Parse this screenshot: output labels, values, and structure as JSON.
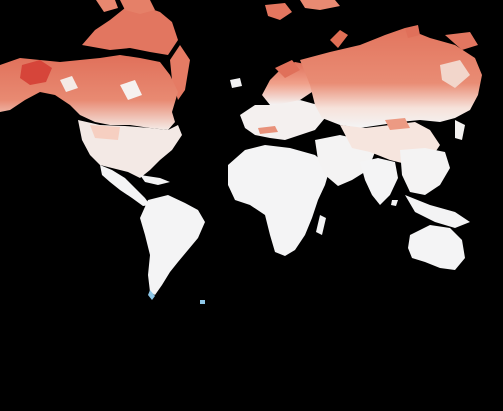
{
  "map": {
    "projection": "mercator",
    "background_color": "#000000",
    "color_scale": {
      "low": "#f5f5f7",
      "mid": "#f4b9a3",
      "high": "#e06f55",
      "max": "#d6453a",
      "negative": "#8ec7e8"
    },
    "regions": [
      {
        "name": "north-america-arctic",
        "level": 0.85
      },
      {
        "name": "canada",
        "level": 0.8
      },
      {
        "name": "usa",
        "level": 0.15
      },
      {
        "name": "mexico-central-america",
        "level": 0.02
      },
      {
        "name": "greenland-fragments",
        "level": 0.8
      },
      {
        "name": "south-america",
        "level": 0.0
      },
      {
        "name": "europe-north",
        "level": 0.75
      },
      {
        "name": "europe-central",
        "level": 0.2
      },
      {
        "name": "africa",
        "level": 0.0
      },
      {
        "name": "middle-east",
        "level": 0.05
      },
      {
        "name": "russia-siberia",
        "level": 0.8
      },
      {
        "name": "central-asia",
        "level": 0.3
      },
      {
        "name": "south-asia",
        "level": 0.02
      },
      {
        "name": "southeast-asia",
        "level": 0.0
      },
      {
        "name": "australia",
        "level": 0.0
      }
    ]
  }
}
